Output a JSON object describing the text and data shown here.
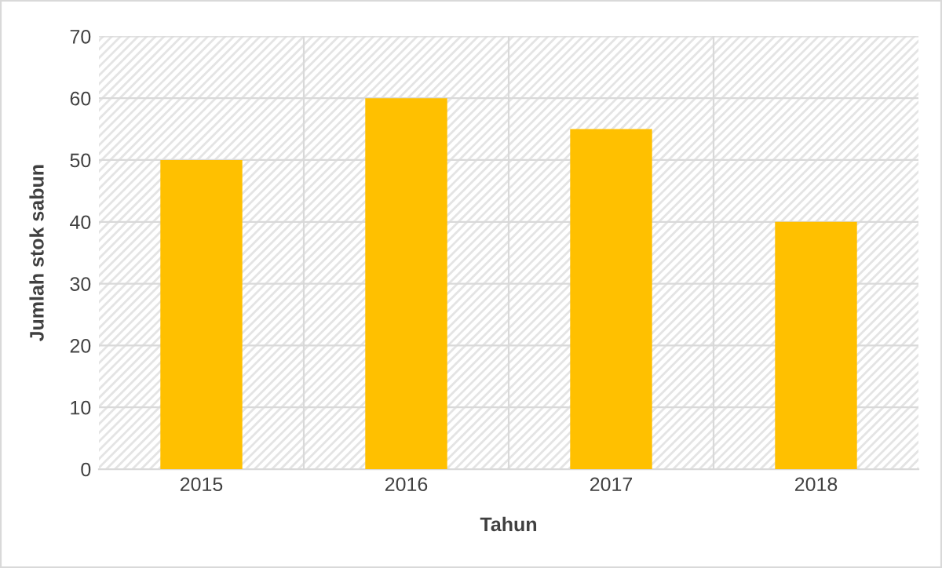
{
  "chart_data": {
    "type": "bar",
    "categories": [
      "2015",
      "2016",
      "2017",
      "2018"
    ],
    "values": [
      50,
      60,
      55,
      40
    ],
    "color": "#ffc000",
    "xlabel": "Tahun",
    "ylabel": "Jumlah stok sabun",
    "ylim": [
      0,
      70
    ],
    "yticks": [
      0,
      10,
      20,
      30,
      40,
      50,
      60,
      70
    ],
    "grid": true
  }
}
